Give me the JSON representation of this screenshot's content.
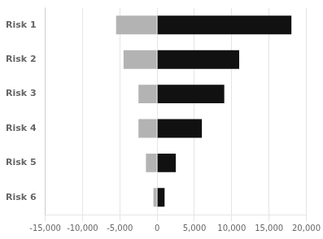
{
  "chart_data": {
    "type": "bar",
    "orientation": "horizontal",
    "stacked": true,
    "grid": true,
    "categories": [
      "Risk 1",
      "Risk 2",
      "Risk 3",
      "Risk 4",
      "Risk 5",
      "Risk 6"
    ],
    "series": [
      {
        "color": "#b3b3b3",
        "values": [
          -5500,
          -4500,
          -2500,
          -2500,
          -1500,
          -500
        ]
      },
      {
        "color": "#111111",
        "values": [
          18000,
          11000,
          9000,
          6000,
          2500,
          1000
        ]
      }
    ],
    "xlim": [
      -15000,
      20000
    ],
    "xticks": [
      {
        "value": -15000,
        "label": "-15,000"
      },
      {
        "value": -10000,
        "label": "-10,000"
      },
      {
        "value": -5000,
        "label": "-5,000"
      },
      0,
      {
        "value": 5000,
        "label": "5,000"
      },
      {
        "value": 10000,
        "label": "10,000"
      },
      {
        "value": 15000,
        "label": "15,000"
      },
      {
        "value": 20000,
        "label": "20,000"
      }
    ]
  }
}
